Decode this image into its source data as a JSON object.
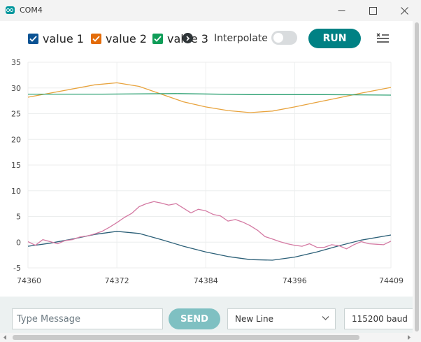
{
  "window": {
    "title": "COM4",
    "controls": [
      "minimize-icon",
      "maximize-icon",
      "close-icon"
    ]
  },
  "toolbar": {
    "legend": [
      {
        "label": "value 1",
        "color": "#0b5394",
        "checked": true
      },
      {
        "label": "value 2",
        "color": "#e36c09",
        "checked": true
      },
      {
        "label": "value 3",
        "color": "#0f9d58",
        "checked": true
      }
    ],
    "interpolate_label": "Interpolate",
    "interpolate_on": false,
    "run_label": "RUN",
    "accent_color": "#008184"
  },
  "chart_data": {
    "type": "line",
    "x_ticks": [
      "74360",
      "74372",
      "74384",
      "74396",
      "74409"
    ],
    "y_ticks": [
      "35",
      "30",
      "25",
      "20",
      "15",
      "10",
      "5",
      "0",
      "-5"
    ],
    "xlim": [
      74360,
      74409
    ],
    "ylim": [
      -5,
      35
    ],
    "grid": true,
    "series": [
      {
        "color": "#2b5f77",
        "x": [
          74360,
          74363,
          74366,
          74369,
          74372,
          74375,
          74378,
          74381,
          74384,
          74387,
          74390,
          74393,
          74396,
          74399,
          74402,
          74405,
          74409
        ],
        "y": [
          -0.8,
          -0.2,
          0.6,
          1.5,
          2.1,
          1.7,
          0.5,
          -0.8,
          -1.9,
          -2.8,
          -3.4,
          -3.5,
          -2.9,
          -1.9,
          -0.7,
          0.4,
          1.4
        ]
      },
      {
        "color": "#e8a33d",
        "x": [
          74360,
          74363,
          74366,
          74369,
          74372,
          74375,
          74378,
          74381,
          74384,
          74387,
          74390,
          74393,
          74396,
          74399,
          74402,
          74405,
          74409
        ],
        "y": [
          28.2,
          29.0,
          29.8,
          30.6,
          31.0,
          30.3,
          28.8,
          27.3,
          26.3,
          25.6,
          25.2,
          25.5,
          26.3,
          27.2,
          28.1,
          29.0,
          30.1
        ]
      },
      {
        "color": "#2ea173",
        "x": [
          74360,
          74370,
          74380,
          74390,
          74400,
          74409
        ],
        "y": [
          28.8,
          28.8,
          28.9,
          28.7,
          28.7,
          28.6
        ]
      },
      {
        "color": "#d47aa3",
        "x": [
          74360,
          74361,
          74362,
          74363,
          74364,
          74365,
          74366,
          74367,
          74368,
          74369,
          74370,
          74371,
          74372,
          74373,
          74374,
          74375,
          74376,
          74377,
          74378,
          74379,
          74380,
          74381,
          74382,
          74383,
          74384,
          74385,
          74386,
          74387,
          74388,
          74389,
          74390,
          74391,
          74392,
          74393,
          74394,
          74395,
          74396,
          74397,
          74398,
          74399,
          74400,
          74401,
          74402,
          74403,
          74404,
          74405,
          74406,
          74407,
          74408,
          74409
        ],
        "y": [
          0.1,
          -0.6,
          0.5,
          0.1,
          -0.3,
          0.3,
          0.5,
          1.0,
          1.2,
          1.6,
          2.1,
          2.9,
          3.8,
          4.8,
          5.6,
          6.9,
          7.5,
          7.9,
          7.6,
          7.2,
          7.5,
          6.6,
          5.7,
          6.4,
          6.1,
          5.4,
          5.1,
          4.1,
          4.4,
          3.9,
          3.2,
          2.3,
          1.1,
          0.6,
          0.1,
          -0.3,
          -0.6,
          -0.8,
          -0.3,
          -1.0,
          -1.0,
          -0.5,
          -0.7,
          -1.3,
          -0.5,
          0.1,
          -0.3,
          -0.4,
          -0.5,
          0.2
        ]
      }
    ]
  },
  "footer": {
    "message_placeholder": "Type Message",
    "send_label": "SEND",
    "line_ending": "New Line",
    "baud": "115200 baud"
  }
}
